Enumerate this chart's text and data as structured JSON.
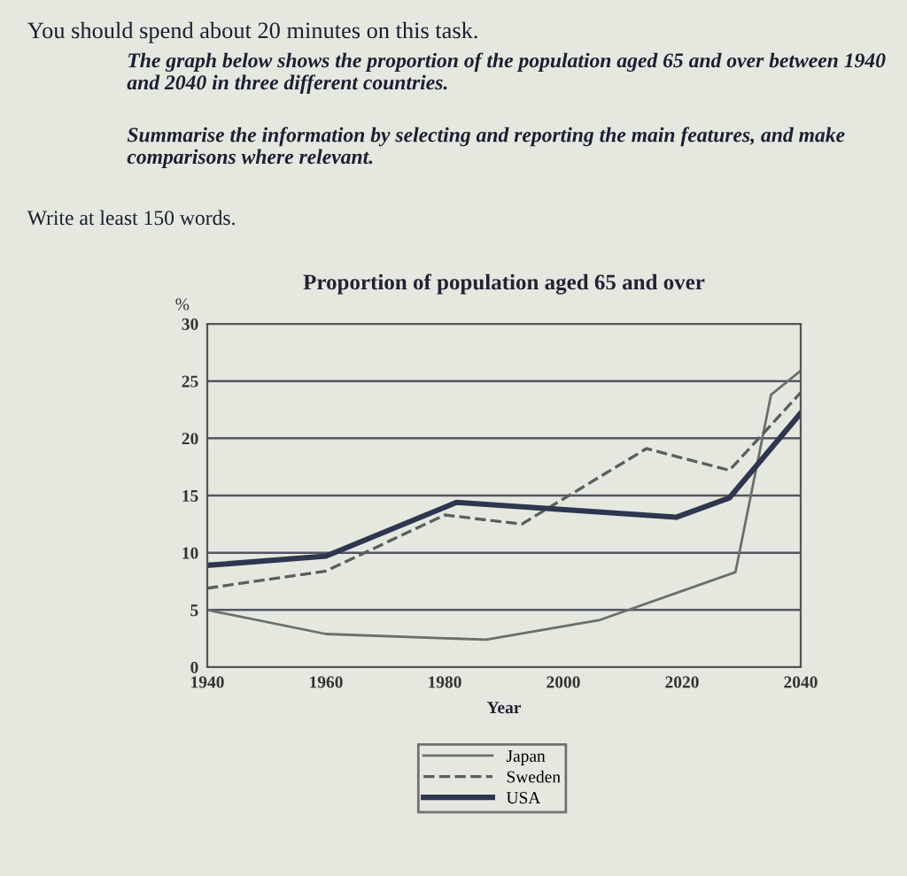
{
  "chart_data": {
    "type": "line",
    "title": "Proportion of population aged 65 and over",
    "ylabel": "%",
    "xlabel": "Year",
    "annotations": [
      "You should spend about 20 minutes on this task.",
      "The graph below shows the proportion of the population aged 65 and over between 1940 and 2040 in three different countries.",
      "Summarise the information by selecting and reporting the main features, and make comparisons where relevant.",
      "Write at least 150 words."
    ],
    "series": [
      {
        "name": "Japan",
        "color": "#6a6f6a",
        "line_style": "solid",
        "x": [
          1940,
          1960,
          1987,
          2006,
          2029,
          2035,
          2040
        ],
        "values": [
          5,
          2.9,
          2.4,
          4.1,
          8.3,
          23.8,
          25.9
        ]
      },
      {
        "name": "Sweden",
        "color": "#5a5f5c",
        "line_style": "dashed",
        "x": [
          1940,
          1960,
          1980,
          1993,
          2014,
          2028,
          2040
        ],
        "values": [
          6.9,
          8.4,
          13.3,
          12.5,
          19.1,
          17.2,
          24
        ]
      },
      {
        "name": "USA",
        "color": "#2e3650",
        "line_style": "solid",
        "x": [
          1940,
          1960,
          1982,
          2019,
          2028,
          2040
        ],
        "values": [
          8.9,
          9.7,
          14.4,
          13.1,
          14.8,
          22.2
        ]
      }
    ],
    "xlim": [
      1940,
      2040
    ],
    "xticks": [
      1940,
      1960,
      1980,
      2000,
      2020,
      2040
    ],
    "ylim": [
      0,
      30
    ],
    "yticks": [
      0,
      5,
      10,
      15,
      20,
      25,
      30
    ],
    "grid": "y",
    "legend": "bottom",
    "marker": "none"
  }
}
